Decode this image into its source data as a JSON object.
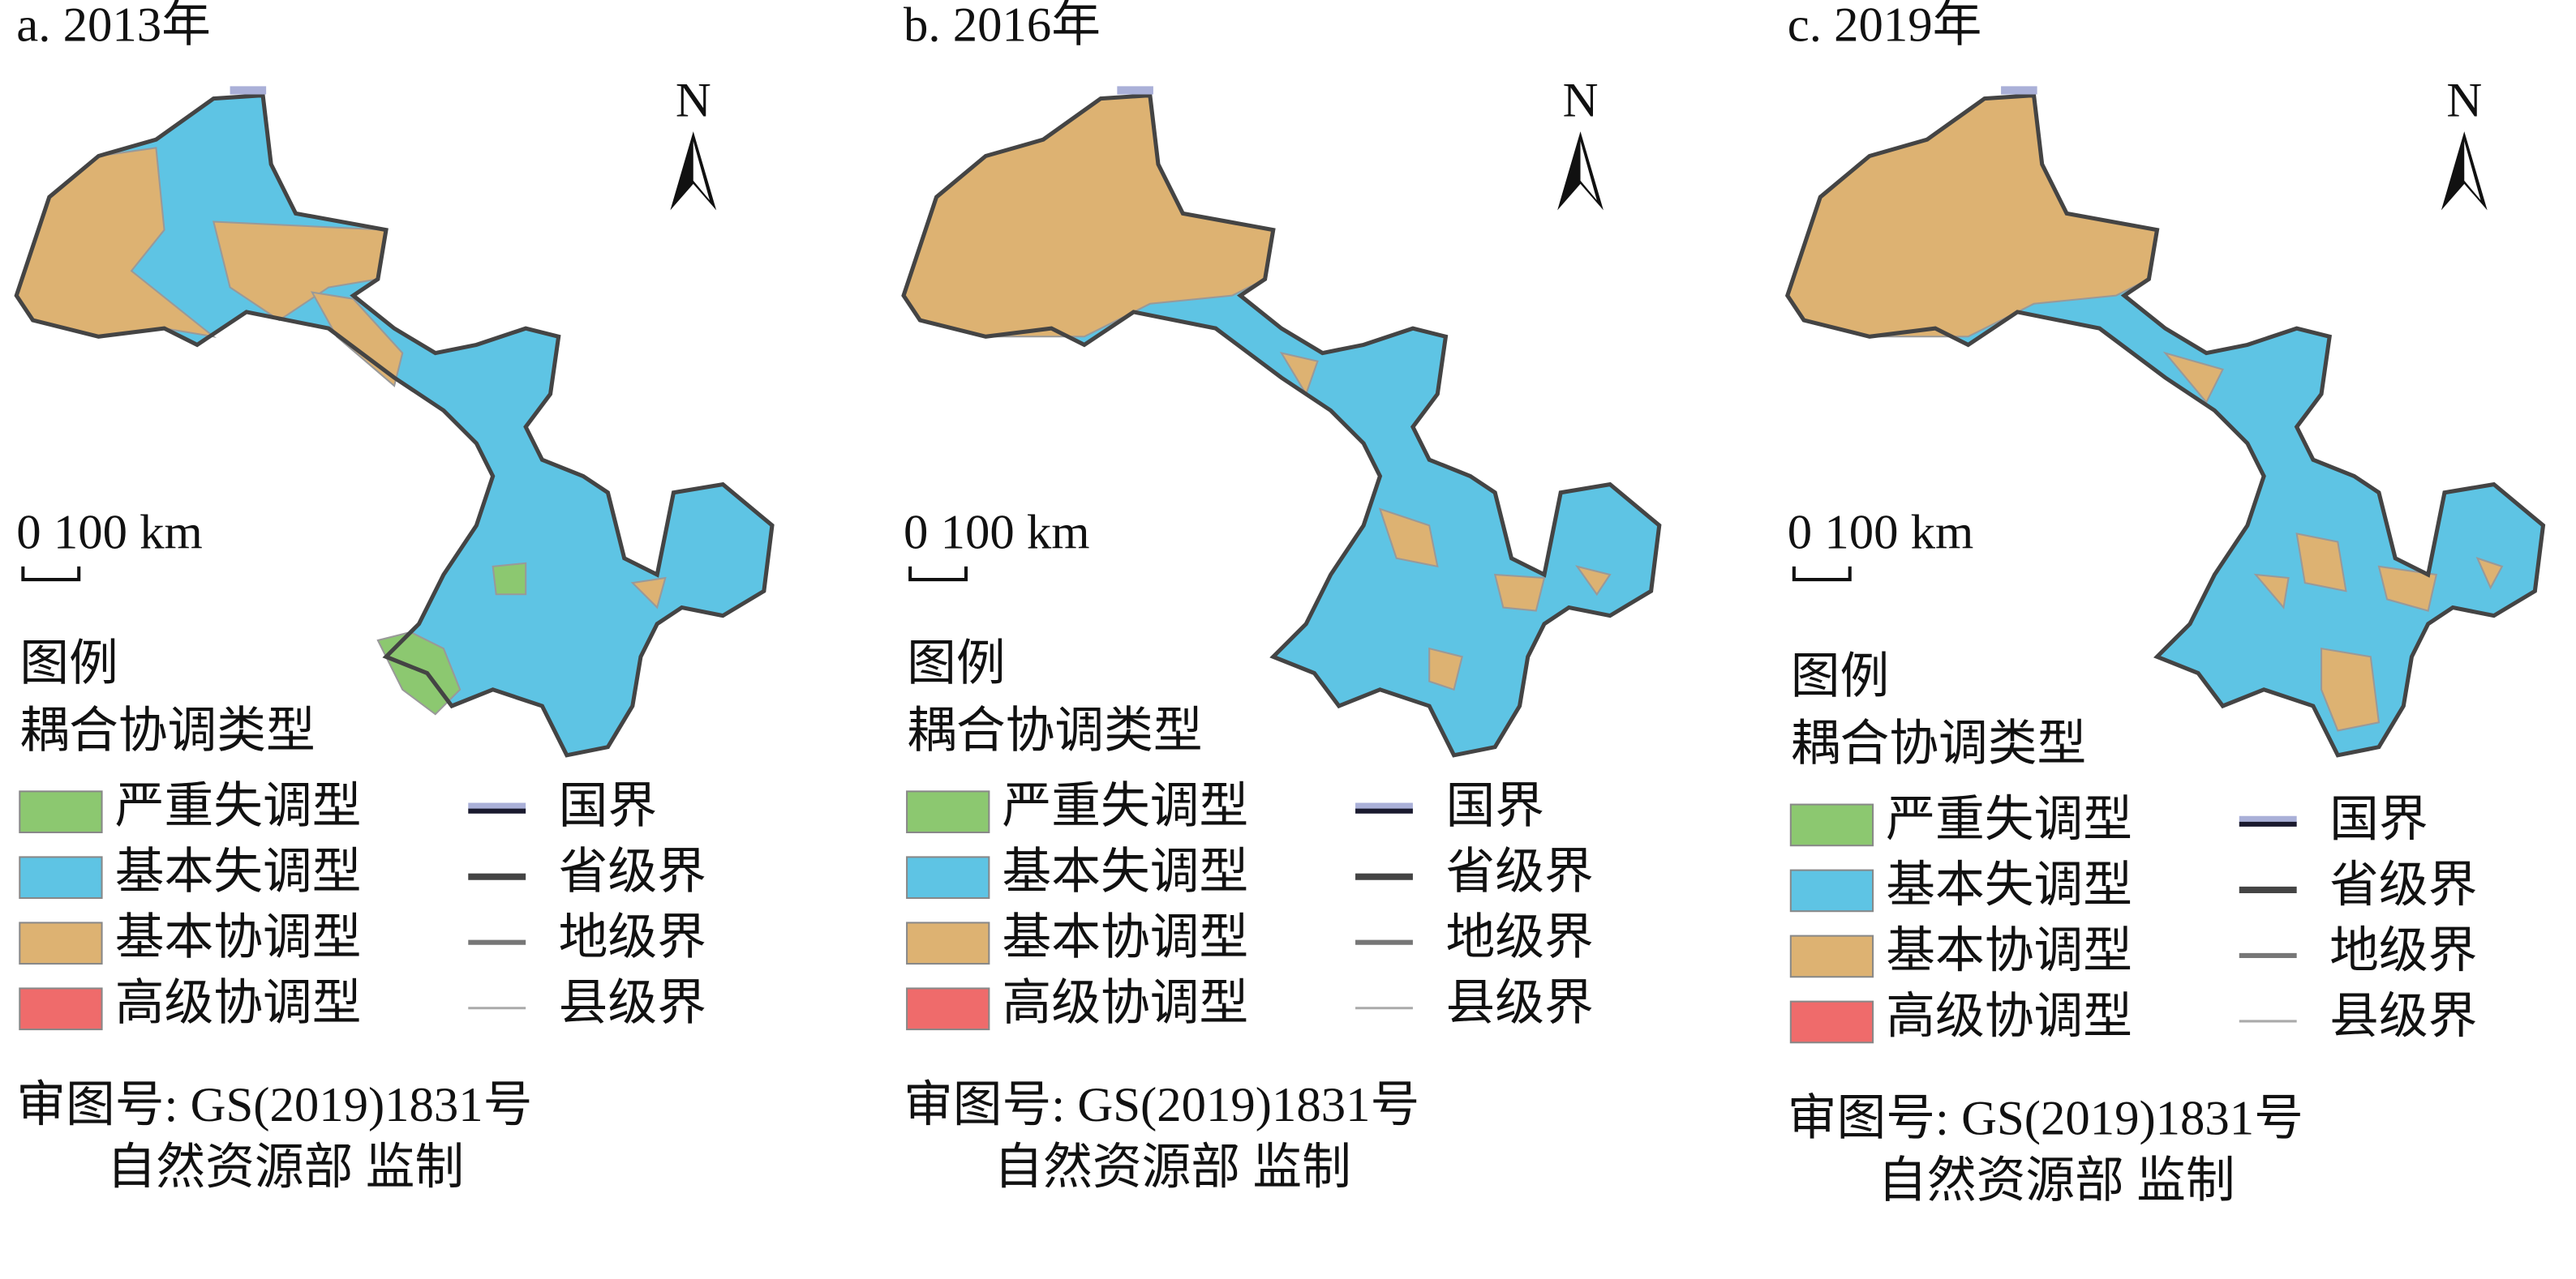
{
  "panels": [
    {
      "title": "a. 2013年",
      "north": "N",
      "scale": "0 100 km",
      "legend_title": "图例",
      "legend_subtitle": "耦合协调类型",
      "types": [
        {
          "label": "严重失调型",
          "color": "#8cc870"
        },
        {
          "label": "基本失调型",
          "color": "#5ec4e4"
        },
        {
          "label": "基本协调型",
          "color": "#ddb272"
        },
        {
          "label": "高级协调型",
          "color": "#ef6b6b"
        }
      ],
      "boundaries": [
        {
          "label": "国界"
        },
        {
          "label": "省级界"
        },
        {
          "label": "地级界"
        },
        {
          "label": "县级界"
        }
      ],
      "approval": [
        "审图号: GS(2019)1831号",
        "自然资源部 监制"
      ]
    },
    {
      "title": "b. 2016年",
      "north": "N",
      "scale": "0 100 km",
      "legend_title": "图例",
      "legend_subtitle": "耦合协调类型",
      "types": [
        {
          "label": "严重失调型",
          "color": "#8cc870"
        },
        {
          "label": "基本失调型",
          "color": "#5ec4e4"
        },
        {
          "label": "基本协调型",
          "color": "#ddb272"
        },
        {
          "label": "高级协调型",
          "color": "#ef6b6b"
        }
      ],
      "boundaries": [
        {
          "label": "国界"
        },
        {
          "label": "省级界"
        },
        {
          "label": "地级界"
        },
        {
          "label": "县级界"
        }
      ],
      "approval": [
        "审图号: GS(2019)1831号",
        "自然资源部 监制"
      ]
    },
    {
      "title": "c. 2019年",
      "north": "N",
      "scale": "0 100 km",
      "legend_title": "图例",
      "legend_subtitle": "耦合协调类型",
      "types": [
        {
          "label": "严重失调型",
          "color": "#8cc870"
        },
        {
          "label": "基本失调型",
          "color": "#5ec4e4"
        },
        {
          "label": "基本协调型",
          "color": "#ddb272"
        },
        {
          "label": "高级协调型",
          "color": "#ef6b6b"
        }
      ],
      "boundaries": [
        {
          "label": "国界"
        },
        {
          "label": "省级界"
        },
        {
          "label": "地级界"
        },
        {
          "label": "县级界"
        }
      ],
      "approval": [
        "审图号: GS(2019)1831号",
        "自然资源部 监制"
      ]
    }
  ]
}
